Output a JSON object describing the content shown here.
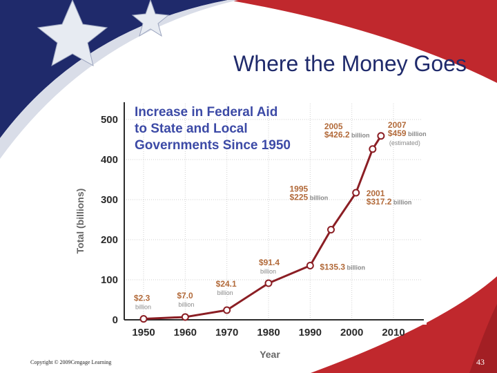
{
  "slide": {
    "title": "Where the Money Goes",
    "copyright": "Copyright © 2009Cengage Learning",
    "page_number": "43"
  },
  "colors": {
    "navy": "#1f2a6b",
    "flag_red": "#c0282d",
    "line": "#8b1e24",
    "title_blue": "#3c4aa6",
    "label_brown": "#b26a3a"
  },
  "chart_data": {
    "type": "line",
    "title_lines": [
      "Increase in Federal Aid",
      "to State and Local",
      "Governments Since 1950"
    ],
    "xlabel": "Year",
    "ylabel": "Total (billions)",
    "xlim": [
      1950,
      2010
    ],
    "ylim": [
      0,
      500
    ],
    "xticks": [
      "1950",
      "1960",
      "1970",
      "1980",
      "1990",
      "2000",
      "2010"
    ],
    "yticks": [
      "0",
      "100",
      "200",
      "300",
      "400",
      "500"
    ],
    "grid": true,
    "points": [
      {
        "x": 1950,
        "y": 2.3,
        "value": "$2.3",
        "unit": "billion"
      },
      {
        "x": 1960,
        "y": 7.0,
        "value": "$7.0",
        "unit": "billion"
      },
      {
        "x": 1970,
        "y": 24.1,
        "value": "$24.1",
        "unit": "billion"
      },
      {
        "x": 1980,
        "y": 91.4,
        "value": "$91.4",
        "unit": "billion"
      },
      {
        "x": 1990,
        "y": 135.3,
        "value": "$135.3",
        "unit": "billion"
      },
      {
        "x": 1995,
        "y": 225,
        "year": "1995",
        "value": "$225",
        "unit": "billion"
      },
      {
        "x": 2001,
        "y": 317.2,
        "year": "2001",
        "value": "$317.2",
        "unit": "billion"
      },
      {
        "x": 2005,
        "y": 426.2,
        "year": "2005",
        "value": "$426.2",
        "unit": "billion"
      },
      {
        "x": 2007,
        "y": 459,
        "year": "2007",
        "value": "$459",
        "unit": "billion",
        "note": "(estimated)"
      }
    ]
  }
}
